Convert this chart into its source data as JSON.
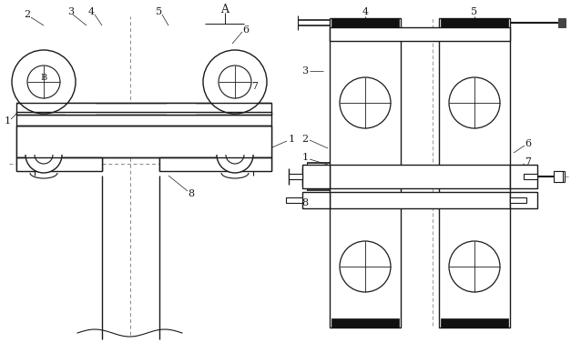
{
  "bg_color": "#ffffff",
  "line_color": "#1a1a1a",
  "fig_width": 6.27,
  "fig_height": 3.88,
  "dpi": 100
}
